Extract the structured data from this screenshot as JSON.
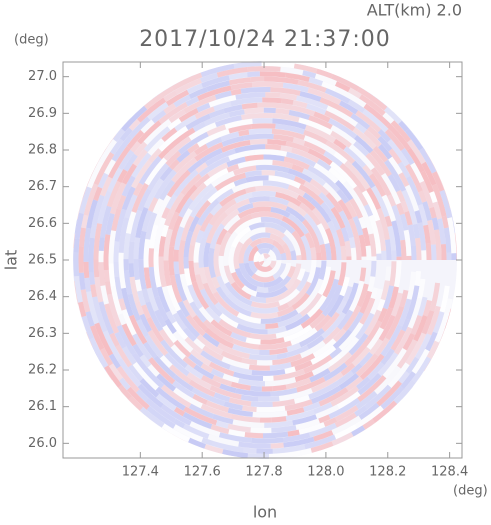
{
  "chart_data": {
    "type": "radar-ppi",
    "title": "2017/10/24 21:37:00",
    "subtitle": "ALT(km) 2.0",
    "x_label": "lon",
    "y_label": "lat",
    "x_unit": "(deg)",
    "y_unit": "(deg)",
    "xlim": [
      127.15,
      128.44
    ],
    "ylim": [
      25.96,
      27.04
    ],
    "xticks": [
      127.4,
      127.6,
      127.8,
      {
        "value": 128.0,
        "label": "128.0"
      },
      128.2,
      128.4
    ],
    "yticks": [
      {
        "value": 26.0,
        "label": "26.0"
      },
      26.1,
      26.2,
      26.3,
      26.4,
      26.5,
      26.6,
      26.7,
      26.8,
      26.9,
      {
        "value": 27.0,
        "label": "27.0"
      }
    ]
  }
}
